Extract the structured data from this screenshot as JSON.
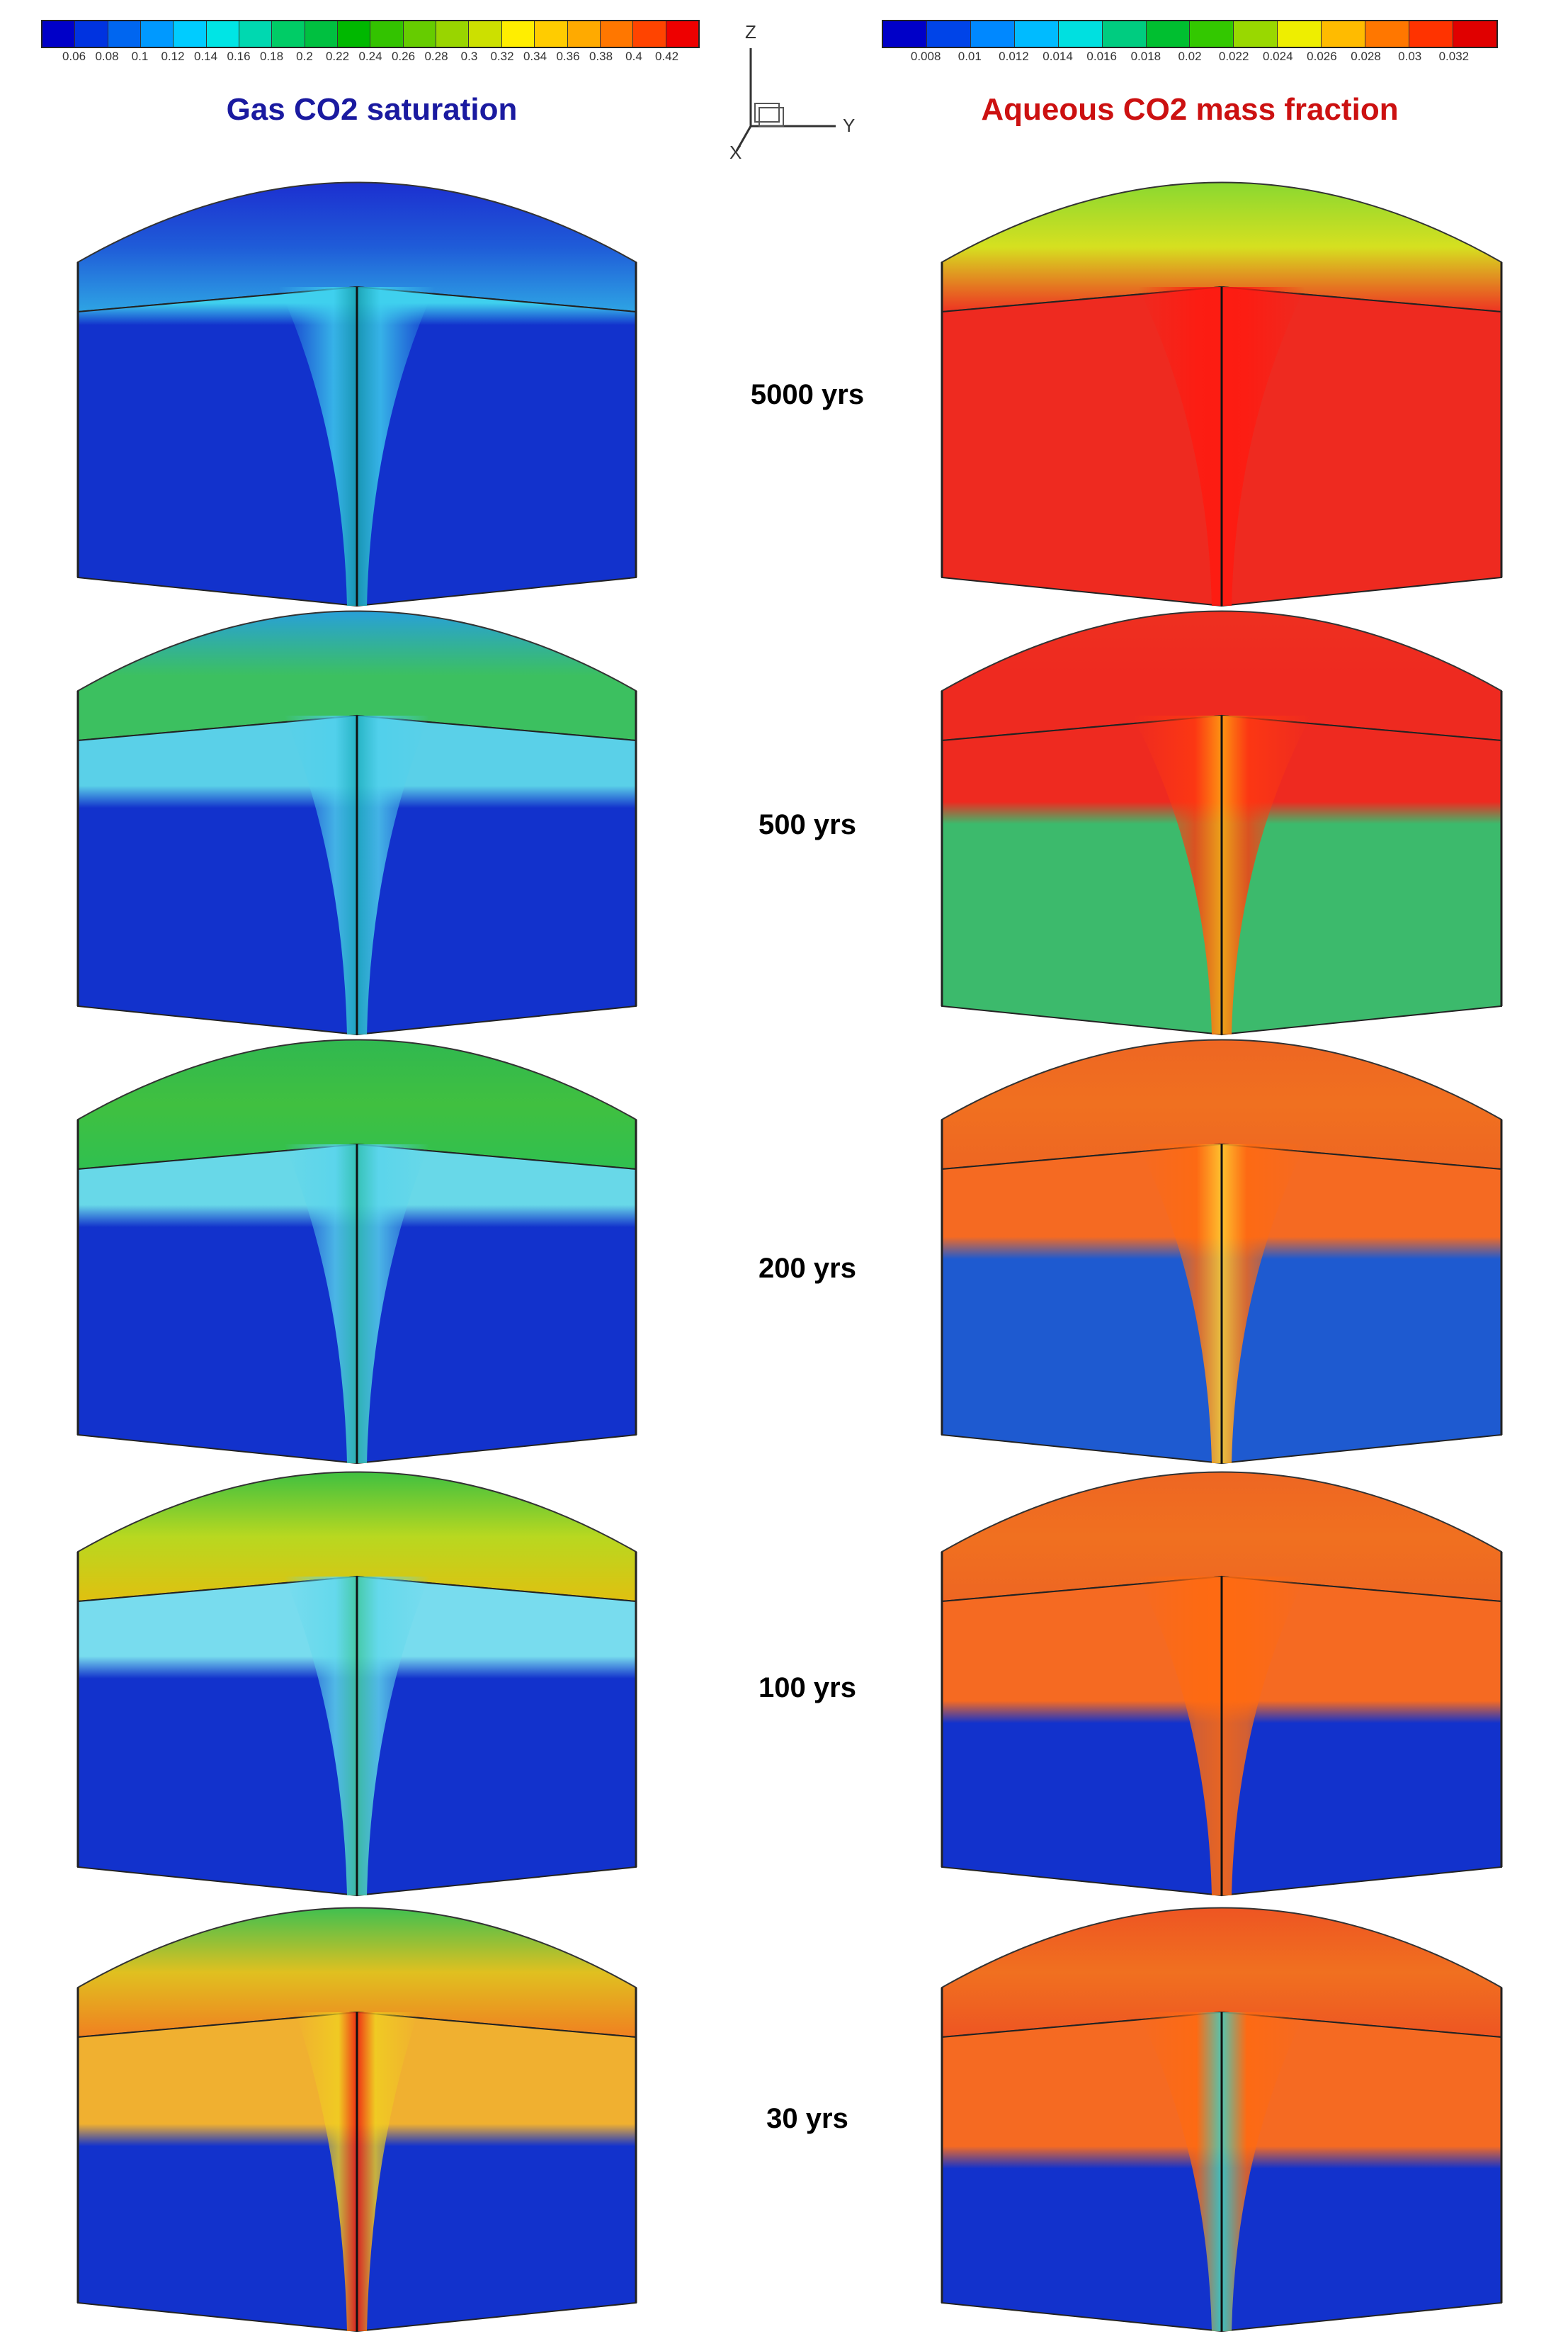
{
  "left_colorbar": {
    "ticks": [
      "0.06",
      "0.08",
      "0.1",
      "0.12",
      "0.14",
      "0.16",
      "0.18",
      "0.2",
      "0.22",
      "0.24",
      "0.26",
      "0.28",
      "0.3",
      "0.32",
      "0.34",
      "0.36",
      "0.38",
      "0.4",
      "0.42"
    ],
    "colors": [
      "#0000c8",
      "#0033e0",
      "#0066f0",
      "#0099ff",
      "#00ccff",
      "#00e5e5",
      "#00d8b0",
      "#00cc66",
      "#00c040",
      "#00b800",
      "#33c300",
      "#66cc00",
      "#99d500",
      "#cce000",
      "#ffee00",
      "#ffcc00",
      "#ffaa00",
      "#ff7700",
      "#ff4400",
      "#ee0000"
    ]
  },
  "right_colorbar": {
    "ticks": [
      "0.008",
      "0.01",
      "0.012",
      "0.014",
      "0.016",
      "0.018",
      "0.02",
      "0.022",
      "0.024",
      "0.026",
      "0.028",
      "0.03",
      "0.032"
    ],
    "colors": [
      "#0000c8",
      "#0044e8",
      "#0088ff",
      "#00bbff",
      "#00e0e0",
      "#00cc80",
      "#00bf30",
      "#33c800",
      "#99d800",
      "#eeee00",
      "#ffbb00",
      "#ff7700",
      "#ff3300",
      "#e00000"
    ]
  },
  "headings": {
    "left": "Gas CO2 saturation",
    "right": "Aqueous CO2 mass fraction",
    "left_color": "#1a1aa0",
    "right_color": "#cc1111"
  },
  "axes": {
    "z": "Z",
    "y": "Y",
    "x": "X"
  },
  "rows": [
    {
      "time": "5000 yrs",
      "left": {
        "top": [
          "#1c2fd0",
          "#1f5cd8",
          "#2ea4e4"
        ],
        "face_upper": "#3fd0ee",
        "face_lower": "#1232cc",
        "boundary": 0.08,
        "plume": "#3fd0ee",
        "plume_w": 0.28,
        "core": "#18a0b0"
      },
      "right": {
        "top": [
          "#8ad830",
          "#d6e020",
          "#ee3322"
        ],
        "face_upper": "#ee2a20",
        "face_lower": "#ee2a20",
        "boundary": 1.0,
        "plume": "#ff1a10",
        "plume_w": 0.3,
        "core": "#ff1a10"
      }
    },
    {
      "time": "500 yrs",
      "left": {
        "top": [
          "#28a0d8",
          "#3cc060",
          "#3cc060"
        ],
        "face_upper": "#5ad0e8",
        "face_lower": "#1232cc",
        "boundary": 0.25,
        "plume": "#4fd0ec",
        "plume_w": 0.26,
        "core": "#20b0c0"
      },
      "right": {
        "top": [
          "#ee3020",
          "#ee2a20",
          "#ee2a20"
        ],
        "face_upper": "#ee2a20",
        "face_lower": "#3cba6c",
        "boundary": 0.3,
        "plume": "#ff3a10",
        "plume_w": 0.32,
        "core": "#ffa010"
      }
    },
    {
      "time": "200 yrs",
      "left": {
        "top": [
          "#30b850",
          "#40c040",
          "#30c050"
        ],
        "face_upper": "#68d8e8",
        "face_lower": "#1232cc",
        "boundary": 0.22,
        "plume": "#58d4ec",
        "plume_w": 0.26,
        "core": "#30c0b0"
      },
      "right": {
        "top": [
          "#ee6622",
          "#f07020",
          "#ee6622"
        ],
        "face_upper": "#f56a22",
        "face_lower": "#1e5ad0",
        "boundary": 0.32,
        "plume": "#ff6a10",
        "plume_w": 0.3,
        "core": "#ffcc30"
      }
    },
    {
      "time": "100 yrs",
      "left": {
        "top": [
          "#40c040",
          "#b8d820",
          "#e0c010"
        ],
        "face_upper": "#78dcee",
        "face_lower": "#1232cc",
        "boundary": 0.28,
        "plume": "#60d8ec",
        "plume_w": 0.26,
        "core": "#40c8a0"
      },
      "right": {
        "top": [
          "#ee6622",
          "#f07020",
          "#ee6622"
        ],
        "face_upper": "#f56a22",
        "face_lower": "#1232cc",
        "boundary": 0.42,
        "plume": "#ff6a10",
        "plume_w": 0.3,
        "core": "#ff6a10"
      }
    },
    {
      "time": "30 yrs",
      "left": {
        "top": [
          "#40c050",
          "#e0c020",
          "#f08020"
        ],
        "face_upper": "#f0b030",
        "face_lower": "#1232cc",
        "boundary": 0.38,
        "plume": "#f0d020",
        "plume_w": 0.22,
        "core": "#ee2010"
      },
      "right": {
        "top": [
          "#ee5522",
          "#f07020",
          "#ee5522"
        ],
        "face_upper": "#f56a22",
        "face_lower": "#1232cc",
        "boundary": 0.45,
        "plume": "#ff6a10",
        "plume_w": 0.3,
        "core": "#40d0c0"
      }
    }
  ]
}
